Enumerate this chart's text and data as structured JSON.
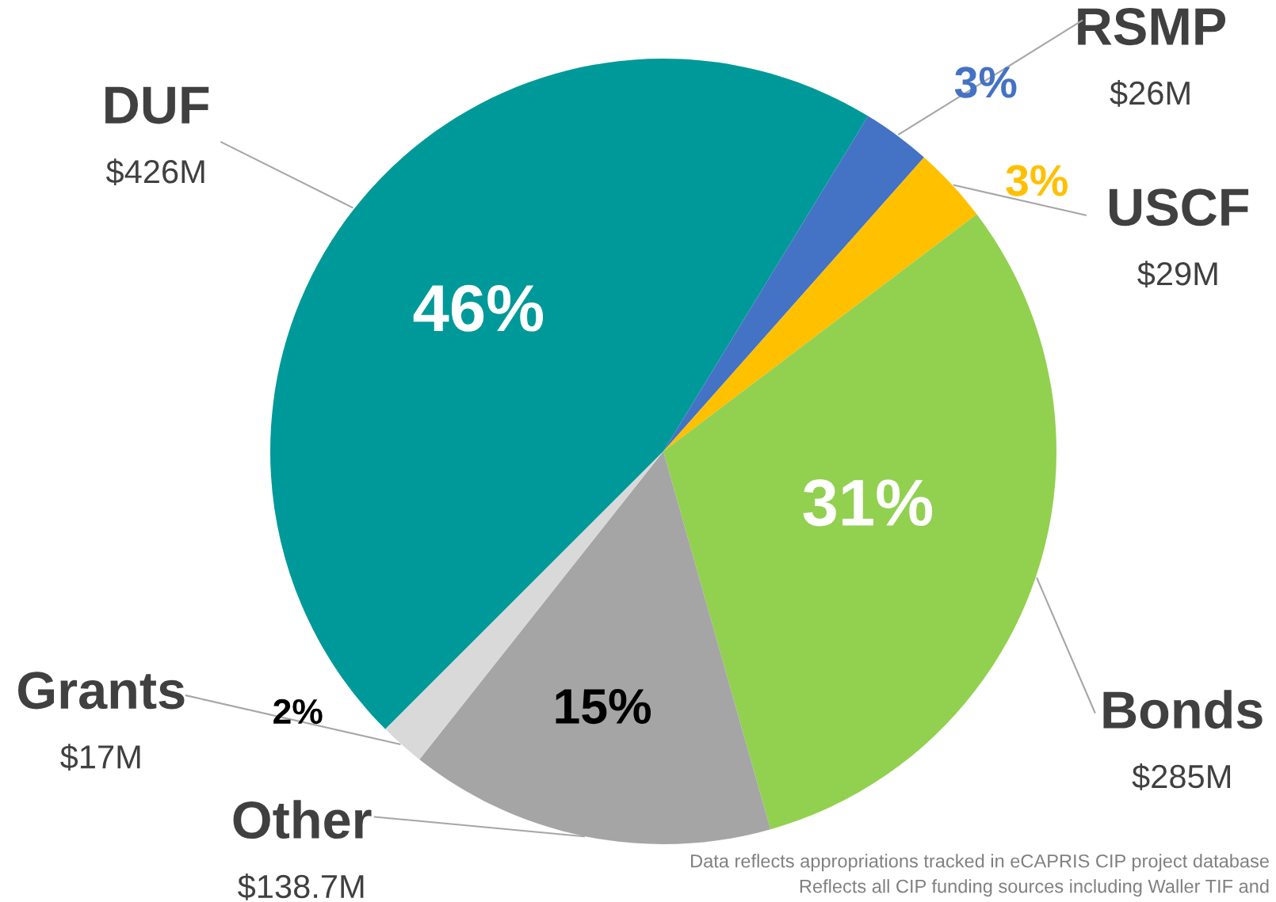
{
  "chart_data": {
    "type": "pie",
    "categories": [
      "DUF",
      "RSMP",
      "USCF",
      "Bonds",
      "Other",
      "Grants"
    ],
    "values": [
      426,
      26,
      29,
      285,
      138.7,
      17
    ],
    "colors": [
      "#009999",
      "#4472c4",
      "#ffc000",
      "#92d050",
      "#a5a5a5",
      "#d9d9d9"
    ],
    "value_labels": [
      "$426M",
      "$26M",
      "$29M",
      "$285M",
      "$138.7M",
      "$17M"
    ],
    "annotations": [
      {
        "text": "46%",
        "x": "DUF"
      },
      {
        "text": "3%",
        "x": "RSMP"
      },
      {
        "text": "3%",
        "x": "USCF"
      },
      {
        "text": "31%",
        "x": "Bonds"
      },
      {
        "text": "15%",
        "x": "Other"
      },
      {
        "text": "2%",
        "x": "Grants"
      },
      "Data reflects appropriations tracked in eCAPRIS CIP project database",
      "Reflects all CIP funding sources including Waller TIF and"
    ],
    "legend": false
  }
}
